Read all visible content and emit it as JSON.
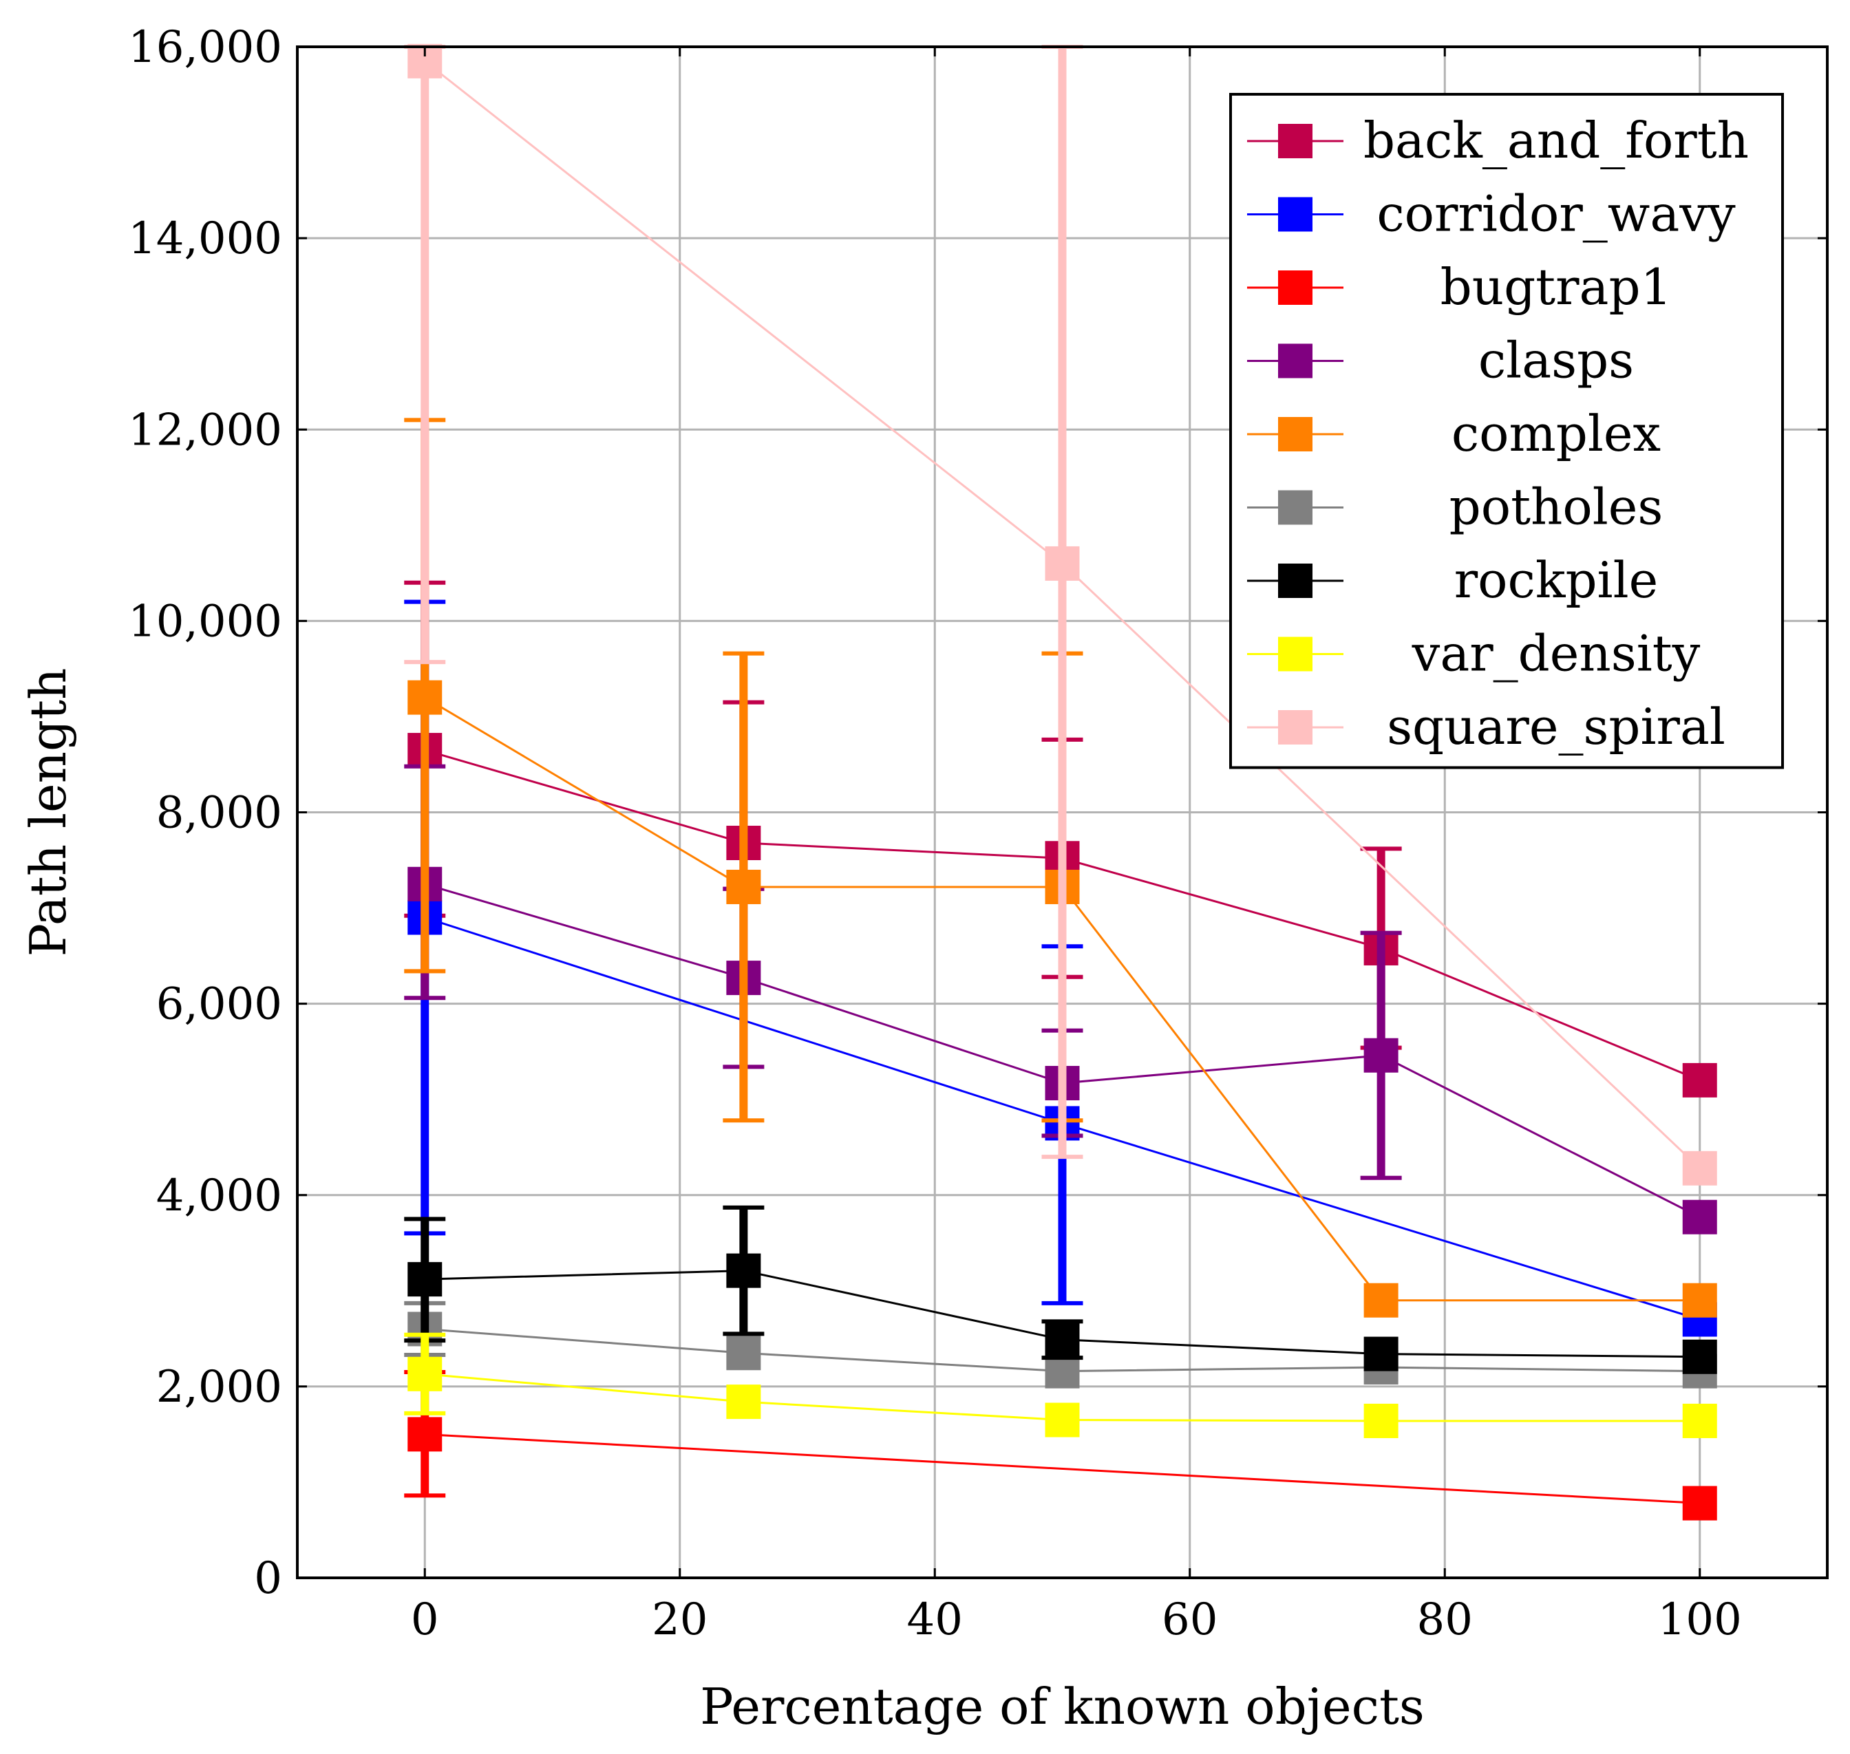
{
  "chart_data": {
    "type": "line",
    "title": "",
    "xlabel": "Percentage of known objects",
    "ylabel": "Path length",
    "xlim": [
      -10,
      110
    ],
    "ylim": [
      0,
      16000
    ],
    "xticks": [
      0,
      20,
      40,
      60,
      80,
      100
    ],
    "yticks": [
      0,
      2000,
      4000,
      6000,
      8000,
      10000,
      12000,
      14000,
      16000
    ],
    "xtick_labels": [
      "0",
      "20",
      "40",
      "60",
      "80",
      "100"
    ],
    "ytick_labels": [
      "0",
      "2,000",
      "4,000",
      "6,000",
      "8,000",
      "10,000",
      "12,000",
      "14,000",
      "16,000"
    ],
    "grid": true,
    "legend_position": "top-right",
    "series": [
      {
        "name": "back_and_forth",
        "color": "#c0004a",
        "x": [
          0,
          25,
          50,
          75,
          100
        ],
        "y": [
          8650,
          7680,
          7520,
          6580,
          5200
        ],
        "err_low": [
          6920,
          7200,
          6280,
          5540,
          5200
        ],
        "err_high": [
          10400,
          9150,
          8760,
          7620,
          5200
        ]
      },
      {
        "name": "corridor_wavy",
        "color": "#0000ff",
        "x": [
          0,
          50,
          100
        ],
        "y": [
          6900,
          4750,
          2700
        ],
        "err_low": [
          3600,
          2870,
          2700
        ],
        "err_high": [
          10200,
          6600,
          2700
        ]
      },
      {
        "name": "bugtrap1",
        "color": "#ff0000",
        "x": [
          0,
          100
        ],
        "y": [
          1500,
          780
        ],
        "err_low": [
          860,
          780
        ],
        "err_high": [
          2150,
          780
        ]
      },
      {
        "name": "clasps",
        "color": "#800080",
        "x": [
          0,
          25,
          50,
          75,
          100
        ],
        "y": [
          7250,
          6270,
          5170,
          5460,
          3770
        ],
        "err_low": [
          6060,
          5340,
          4620,
          4180,
          3770
        ],
        "err_high": [
          8480,
          7200,
          5720,
          6740,
          3770
        ]
      },
      {
        "name": "complex",
        "color": "#ff8000",
        "x": [
          0,
          25,
          50,
          75,
          100
        ],
        "y": [
          9200,
          7220,
          7220,
          2900,
          2900
        ],
        "err_low": [
          6340,
          4780,
          4780,
          2900,
          2900
        ],
        "err_high": [
          12100,
          9660,
          9660,
          2900,
          2900
        ]
      },
      {
        "name": "potholes",
        "color": "#808080",
        "x": [
          0,
          25,
          50,
          75,
          100
        ],
        "y": [
          2600,
          2350,
          2160,
          2200,
          2160
        ],
        "err_low": [
          2330,
          2350,
          2160,
          2200,
          2160
        ],
        "err_high": [
          2870,
          2350,
          2160,
          2200,
          2160
        ]
      },
      {
        "name": "rockpile",
        "color": "#000000",
        "x": [
          0,
          25,
          50,
          75,
          100
        ],
        "y": [
          3120,
          3210,
          2490,
          2340,
          2310
        ],
        "err_low": [
          2480,
          2550,
          2300,
          2340,
          2310
        ],
        "err_high": [
          3750,
          3870,
          2680,
          2340,
          2310
        ]
      },
      {
        "name": "var_density",
        "color": "#ffff00",
        "x": [
          0,
          25,
          50,
          75,
          100
        ],
        "y": [
          2130,
          1840,
          1650,
          1640,
          1640
        ],
        "err_low": [
          1720,
          1840,
          1650,
          1640,
          1640
        ],
        "err_high": [
          2540,
          1840,
          1650,
          1640,
          1640
        ]
      },
      {
        "name": "square_spiral",
        "color": "#ffc0c0",
        "x": [
          0,
          50,
          100
        ],
        "y": [
          15850,
          10600,
          4280
        ],
        "err_low": [
          9570,
          4400,
          4280
        ],
        "err_high": [
          16000,
          16000,
          4280
        ]
      }
    ]
  }
}
